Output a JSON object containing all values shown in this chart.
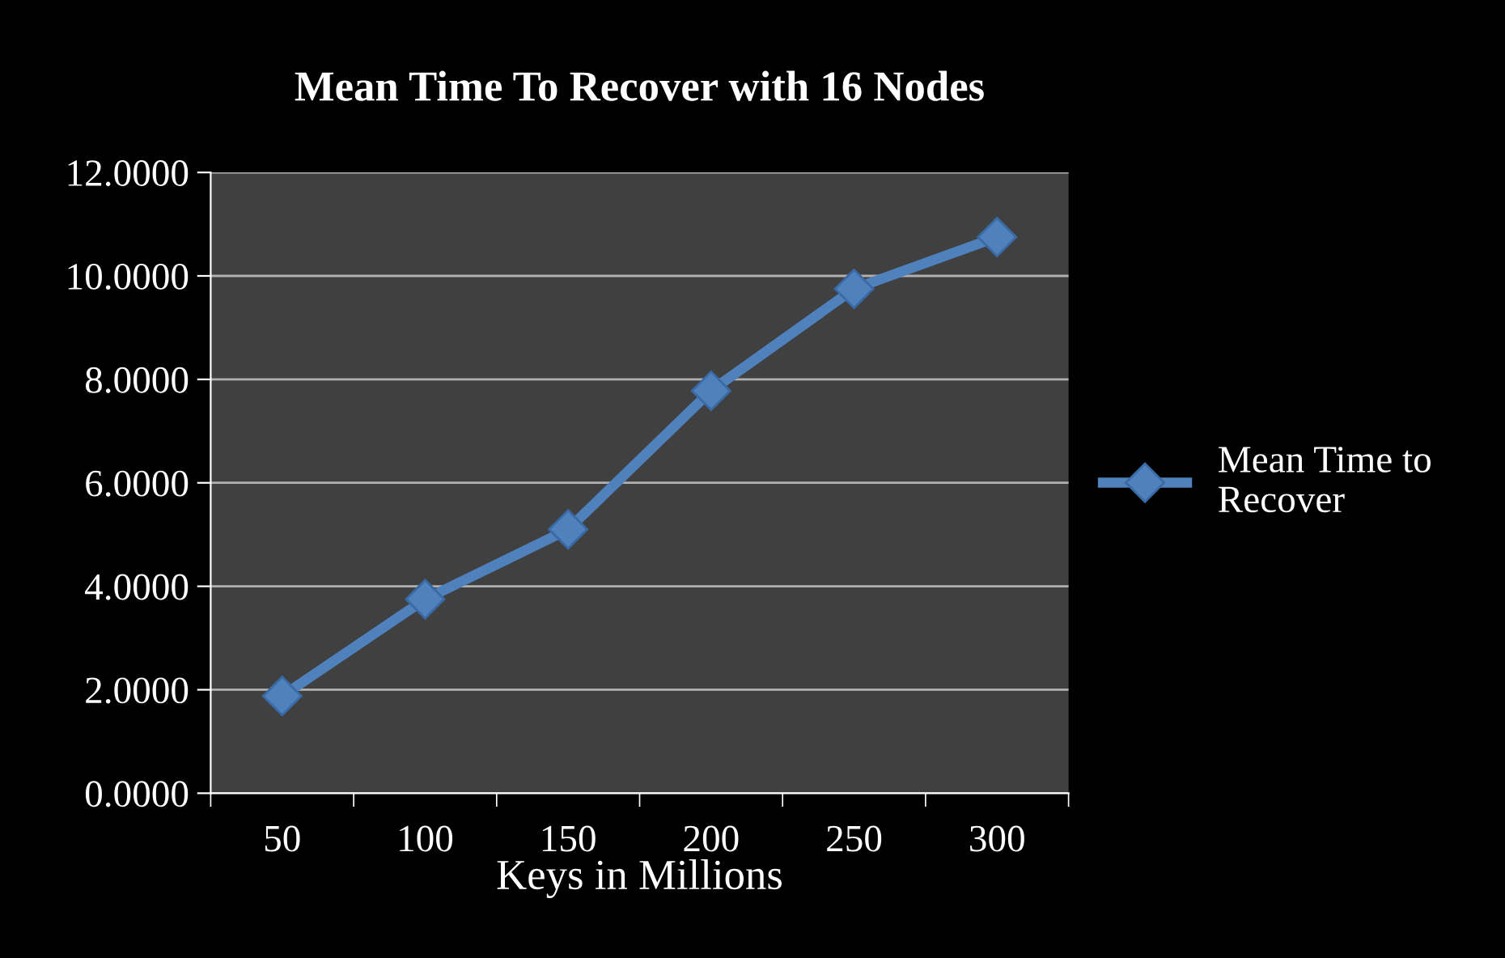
{
  "chart_data": {
    "type": "line",
    "title": "Mean Time To Recover with 16 Nodes",
    "xlabel": "Keys in Millions",
    "categories": [
      "50",
      "100",
      "150",
      "200",
      "250",
      "300"
    ],
    "series": [
      {
        "name": "Mean Time to\nRecover",
        "color": "#4f81bd",
        "values": [
          1.88,
          3.75,
          5.1,
          7.78,
          9.75,
          10.75
        ]
      }
    ],
    "ylim": [
      0,
      12
    ],
    "yticks": [
      {
        "value": 0,
        "label": "0.0000"
      },
      {
        "value": 2,
        "label": "2.0000"
      },
      {
        "value": 4,
        "label": "4.0000"
      },
      {
        "value": 6,
        "label": "6.0000"
      },
      {
        "value": 8,
        "label": "8.0000"
      },
      {
        "value": 10,
        "label": "10.0000"
      },
      {
        "value": 12,
        "label": "12.0000"
      }
    ],
    "grid": "y",
    "legend": "right",
    "marker": "diamond",
    "line_style": "solid"
  }
}
